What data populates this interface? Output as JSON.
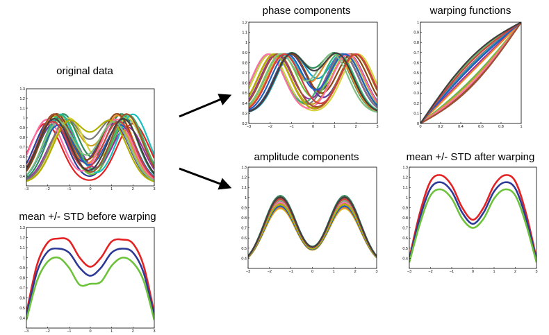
{
  "chart_data": [
    {
      "id": "original",
      "type": "line",
      "title": "original data",
      "xlim": [
        -3,
        3
      ],
      "ylim": [
        0.3,
        1.3
      ],
      "xticks": [
        "−3",
        "−2",
        "−1",
        "0",
        "1",
        "2",
        "3"
      ],
      "yticks": [
        "0.4",
        "0.5",
        "0.6",
        "0.7",
        "0.8",
        "0.9",
        "1",
        "1.1",
        "1.2",
        "1.3"
      ],
      "series_description": "many curves: bimodal functions with randomly shifted peaks",
      "generator": {
        "kind": "bimodal",
        "count": 21,
        "shift": 0.6,
        "amp_var": 0.12,
        "peaks": [
          -1.5,
          1.5
        ],
        "width": 0.75,
        "base": 0.33,
        "height": 0.86
      }
    },
    {
      "id": "phase",
      "type": "line",
      "title": "phase components",
      "xlim": [
        -3,
        3
      ],
      "ylim": [
        0.2,
        1.2
      ],
      "xticks": [
        "−3",
        "−2",
        "−1",
        "0",
        "1",
        "2",
        "3"
      ],
      "yticks": [
        "0.2",
        "0.3",
        "0.4",
        "0.5",
        "0.6",
        "0.7",
        "0.8",
        "0.9",
        "1",
        "1.1",
        "1.2"
      ],
      "generator": {
        "kind": "bimodal",
        "count": 21,
        "shift": 0.6,
        "amp_var": 0.0,
        "peaks": [
          -1.5,
          1.5
        ],
        "width": 0.75,
        "base": 0.3,
        "height": 0.78
      }
    },
    {
      "id": "warp",
      "type": "line",
      "title": "warping functions",
      "xlim": [
        0,
        1
      ],
      "ylim": [
        0,
        1
      ],
      "xticks": [
        "0",
        "0.2",
        "0.4",
        "0.6",
        "0.8",
        "1"
      ],
      "yticks": [
        "0",
        "0.1",
        "0.2",
        "0.3",
        "0.4",
        "0.5",
        "0.6",
        "0.7",
        "0.8",
        "0.9",
        "1"
      ],
      "generator": {
        "kind": "warp",
        "count": 21
      }
    },
    {
      "id": "amplitude",
      "type": "line",
      "title": "amplitude components",
      "xlim": [
        -3,
        3
      ],
      "ylim": [
        0.3,
        1.3
      ],
      "xticks": [
        "−3",
        "−2",
        "−1",
        "0",
        "1",
        "2",
        "3"
      ],
      "yticks": [
        "0.4",
        "0.5",
        "0.6",
        "0.7",
        "0.8",
        "0.9",
        "1",
        "1.1",
        "1.2",
        "1.3"
      ],
      "generator": {
        "kind": "bimodal",
        "count": 21,
        "shift": 0.0,
        "amp_var": 0.12,
        "peaks": [
          -1.5,
          1.5
        ],
        "width": 0.75,
        "base": 0.33,
        "height": 0.82
      }
    },
    {
      "id": "before",
      "type": "line",
      "title": "mean +/- STD before warping",
      "xlim": [
        -3,
        3
      ],
      "ylim": [
        0.3,
        1.3
      ],
      "xticks": [
        "−3",
        "−2",
        "−1",
        "0",
        "1",
        "2",
        "3"
      ],
      "yticks": [
        "0.4",
        "0.5",
        "0.6",
        "0.7",
        "0.8",
        "0.9",
        "1",
        "1.1",
        "1.2",
        "1.3"
      ],
      "series": [
        {
          "name": "",
          "color": "#e32323",
          "x": [
            -3,
            -2.5,
            -2,
            -1.5,
            -1,
            -0.5,
            0,
            0.5,
            1,
            1.5,
            2,
            2.5,
            3
          ],
          "y": [
            0.45,
            0.93,
            1.15,
            1.19,
            1.17,
            1.0,
            0.91,
            1.0,
            1.16,
            1.18,
            1.14,
            0.92,
            0.45
          ]
        },
        {
          "name": "",
          "color": "#2d3a96",
          "x": [
            -3,
            -2.5,
            -2,
            -1.5,
            -1,
            -0.5,
            0,
            0.5,
            1,
            1.5,
            2,
            2.5,
            3
          ],
          "y": [
            0.42,
            0.86,
            1.06,
            1.09,
            1.05,
            0.9,
            0.82,
            0.9,
            1.05,
            1.09,
            1.05,
            0.85,
            0.42
          ]
        },
        {
          "name": "",
          "color": "#6cc23a",
          "x": [
            -3,
            -2.5,
            -2,
            -1.5,
            -1,
            -0.5,
            0,
            0.5,
            1,
            1.5,
            2,
            2.5,
            3
          ],
          "y": [
            0.38,
            0.77,
            0.96,
            1.0,
            0.9,
            0.73,
            0.74,
            0.76,
            0.92,
            1.0,
            0.95,
            0.77,
            0.38
          ]
        }
      ]
    },
    {
      "id": "after",
      "type": "line",
      "title": "mean +/- STD after warping",
      "xlim": [
        -3,
        3
      ],
      "ylim": [
        0.3,
        1.3
      ],
      "xticks": [
        "−3",
        "−2",
        "−1",
        "0",
        "1",
        "2",
        "3"
      ],
      "yticks": [
        "0.4",
        "0.5",
        "0.6",
        "0.7",
        "0.8",
        "0.9",
        "1",
        "1.1",
        "1.2",
        "1.3"
      ],
      "series": [
        {
          "name": "",
          "color": "#e32323",
          "x": [
            -3,
            -2.5,
            -2,
            -1.5,
            -1,
            -0.5,
            0,
            0.5,
            1,
            1.5,
            2,
            2.5,
            3
          ],
          "y": [
            0.4,
            0.85,
            1.16,
            1.22,
            1.12,
            0.9,
            0.78,
            0.9,
            1.12,
            1.22,
            1.16,
            0.85,
            0.4
          ]
        },
        {
          "name": "",
          "color": "#2d3a96",
          "x": [
            -3,
            -2.5,
            -2,
            -1.5,
            -1,
            -0.5,
            0,
            0.5,
            1,
            1.5,
            2,
            2.5,
            3
          ],
          "y": [
            0.38,
            0.8,
            1.09,
            1.15,
            1.06,
            0.85,
            0.74,
            0.85,
            1.06,
            1.15,
            1.09,
            0.8,
            0.38
          ]
        },
        {
          "name": "",
          "color": "#6cc23a",
          "x": [
            -3,
            -2.5,
            -2,
            -1.5,
            -1,
            -0.5,
            0,
            0.5,
            1,
            1.5,
            2,
            2.5,
            3
          ],
          "y": [
            0.36,
            0.74,
            1.02,
            1.08,
            0.99,
            0.79,
            0.7,
            0.79,
            0.99,
            1.08,
            1.02,
            0.74,
            0.36
          ]
        }
      ]
    }
  ],
  "palette": [
    "#e32323",
    "#2d3a96",
    "#6cc23a",
    "#1b9fd1",
    "#c9a229",
    "#9b2fa6",
    "#2e8b57",
    "#7a7a7a",
    "#d4d43a",
    "#19c0c0",
    "#f08a24",
    "#5a3a9a",
    "#8b4513",
    "#3cb371",
    "#ff6fa8",
    "#1f5fbf",
    "#b0b000",
    "#a0522d",
    "#7fbf7f",
    "#d04040",
    "#404040"
  ],
  "arrows": [
    {
      "name": "arrow-to-phase"
    },
    {
      "name": "arrow-to-amplitude"
    }
  ]
}
